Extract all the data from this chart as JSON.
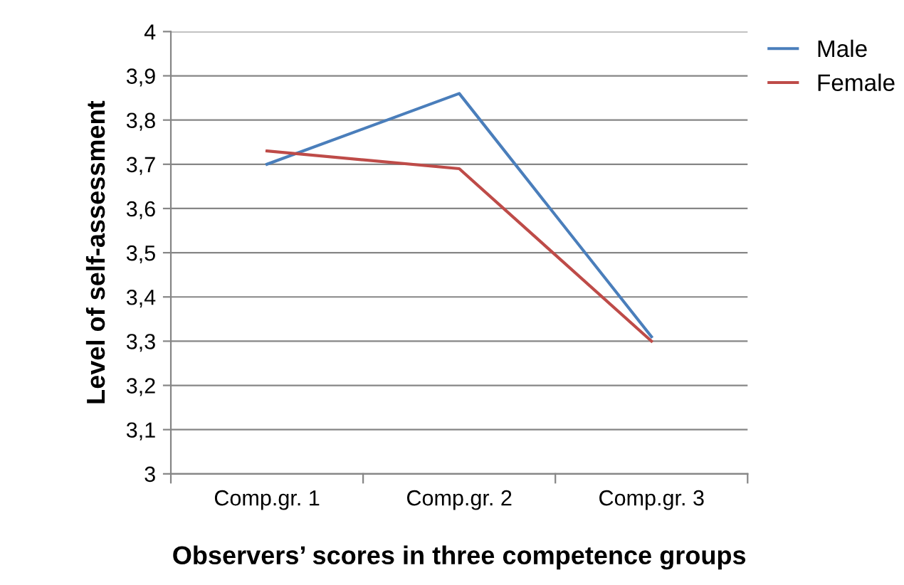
{
  "chart_data": {
    "type": "line",
    "xlabel": "Observers’ scores in three competence groups",
    "ylabel": "Level of self-assessment",
    "categories": [
      "Comp.gr. 1",
      "Comp.gr. 2",
      "Comp.gr. 3"
    ],
    "series": [
      {
        "name": "Male",
        "color": "#4a7ebb",
        "values": [
          3.7,
          3.86,
          3.31
        ]
      },
      {
        "name": "Female",
        "color": "#be4b48",
        "values": [
          3.73,
          3.69,
          3.3
        ]
      }
    ],
    "ylim": [
      3,
      4
    ],
    "yticks": [
      3,
      {
        "value": 3.1,
        "label": "3,1"
      },
      {
        "value": 3.2,
        "label": "3,2"
      },
      {
        "value": 3.3,
        "label": "3,3"
      },
      {
        "value": 3.4,
        "label": "3,4"
      },
      {
        "value": 3.5,
        "label": "3,5"
      },
      {
        "value": 3.6,
        "label": "3,6"
      },
      {
        "value": 3.7,
        "label": "3,7"
      },
      {
        "value": 3.8,
        "label": "3,8"
      },
      {
        "value": 3.9,
        "label": "3,9"
      },
      4
    ],
    "grid": "y",
    "legend": "top right",
    "marker": "none",
    "line_style": "solid"
  }
}
